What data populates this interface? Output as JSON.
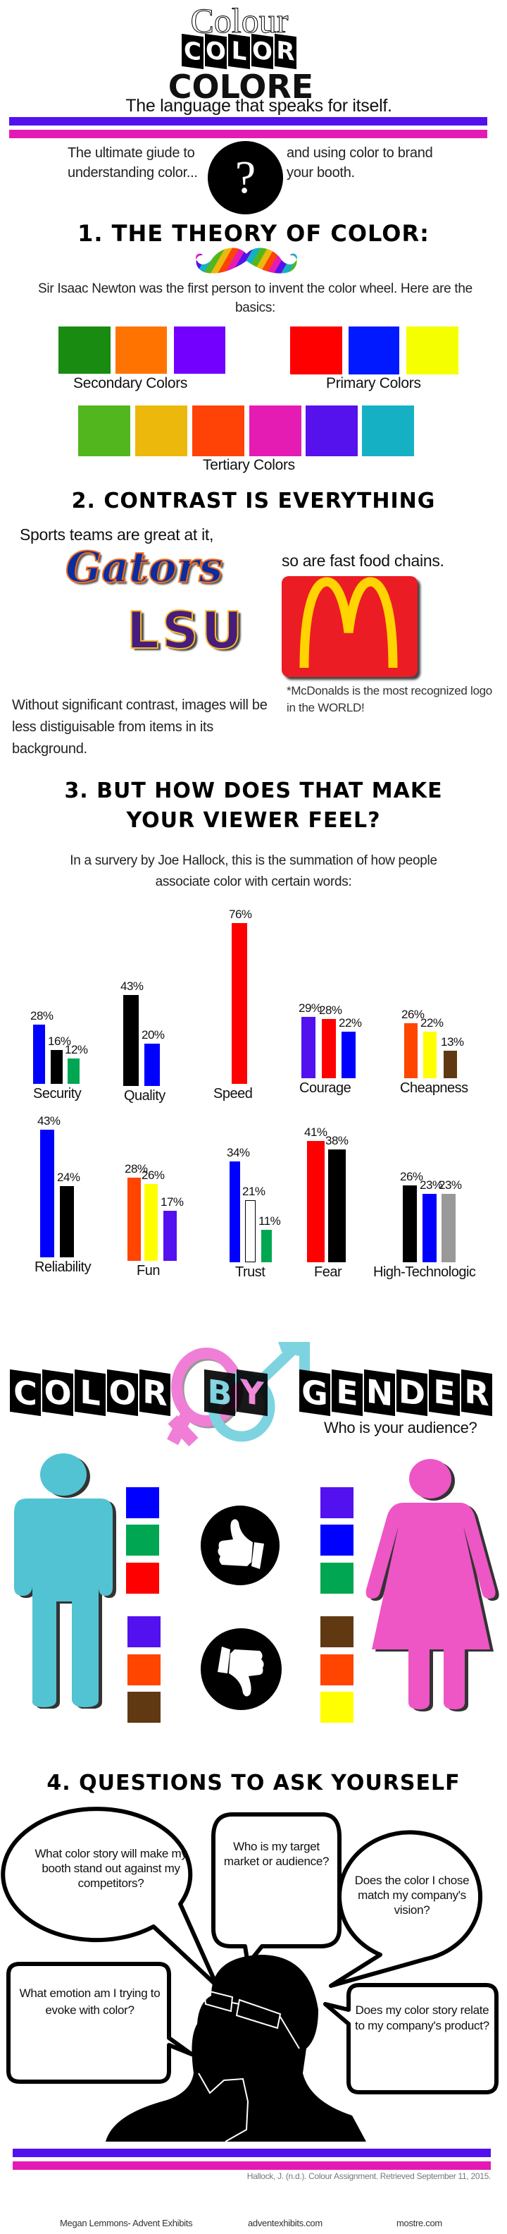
{
  "header": {
    "title_script": "Colour",
    "title_boxed": "COLOR",
    "title_bold": "COLORE",
    "tagline": "The language that speaks for itself.",
    "intro_left": "The ultimate giude to understanding color...",
    "intro_right": "and using color to brand your booth.",
    "question_mark": "?"
  },
  "colors": {
    "purple": "#5211ee",
    "pink": "#e31bb4",
    "male": "#52c3d2",
    "female": "#ee55c5"
  },
  "section1": {
    "heading": "1. THE THEORY OF COLOR:",
    "text": "Sir Isaac Newton was the first person to invent the color wheel. Here are the basics:",
    "secondary": {
      "label": "Secondary Colors",
      "swatches": [
        "#188b10",
        "#ff7300",
        "#7300ff"
      ]
    },
    "primary": {
      "label": "Primary Colors",
      "swatches": [
        "#ff0000",
        "#0019ff",
        "#f5ff00"
      ]
    },
    "tertiary": {
      "label": "Tertiary Colors",
      "swatches": [
        "#52b71f",
        "#ecb80b",
        "#ff4205",
        "#e41cb4",
        "#5612ec",
        "#16b0c5"
      ]
    }
  },
  "section2": {
    "heading": "2. CONTRAST IS EVERYTHING",
    "sports_text": "Sports teams are great at it,",
    "food_text": "so are fast food chains.",
    "logos": {
      "gators": "Gators",
      "lsu": "LSU",
      "mcdonalds": "M"
    },
    "mcd_note": "*McDonalds is the most recognized logo in the WORLD!",
    "contrast_text": "Without significant contrast, images will be less distiguisable from items in its background."
  },
  "section3": {
    "heading_line1": "3. BUT HOW DOES THAT MAKE",
    "heading_line2": "YOUR VIEWER FEEL?",
    "text": "In a survery by Joe Hallock, this is the summation of how people associate color with certain words:"
  },
  "chart_data": {
    "type": "bar",
    "unit": "%",
    "groups": [
      {
        "category": "Security",
        "bars": [
          {
            "value": 28,
            "color": "#0000ff"
          },
          {
            "value": 16,
            "color": "#000000"
          },
          {
            "value": 12,
            "color": "#00a651"
          }
        ]
      },
      {
        "category": "Quality",
        "bars": [
          {
            "value": 43,
            "color": "#000000"
          },
          {
            "value": 20,
            "color": "#0000ff"
          }
        ]
      },
      {
        "category": "Speed",
        "bars": [
          {
            "value": 76,
            "color": "#ff0000"
          }
        ]
      },
      {
        "category": "Courage",
        "bars": [
          {
            "value": 29,
            "color": "#5211ee"
          },
          {
            "value": 28,
            "color": "#ff0000"
          },
          {
            "value": 22,
            "color": "#0000ff"
          }
        ]
      },
      {
        "category": "Cheapness",
        "bars": [
          {
            "value": 26,
            "color": "#ff4500"
          },
          {
            "value": 22,
            "color": "#ffff00"
          },
          {
            "value": 13,
            "color": "#603913"
          }
        ]
      },
      {
        "category": "Reliability",
        "bars": [
          {
            "value": 43,
            "color": "#0000ff"
          },
          {
            "value": 24,
            "color": "#000000"
          }
        ]
      },
      {
        "category": "Fun",
        "bars": [
          {
            "value": 28,
            "color": "#ff4500"
          },
          {
            "value": 26,
            "color": "#ffff00"
          },
          {
            "value": 17,
            "color": "#5211ee"
          }
        ]
      },
      {
        "category": "Trust",
        "bars": [
          {
            "value": 34,
            "color": "#0000ff"
          },
          {
            "value": 21,
            "color": "#ffffff"
          },
          {
            "value": 11,
            "color": "#00a651"
          }
        ]
      },
      {
        "category": "Fear",
        "bars": [
          {
            "value": 41,
            "color": "#ff0000"
          },
          {
            "value": 38,
            "color": "#000000"
          }
        ]
      },
      {
        "category": "High-Technologic",
        "bars": [
          {
            "value": 26,
            "color": "#000000"
          },
          {
            "value": 23,
            "color": "#0000ff"
          },
          {
            "value": 23,
            "color": "#999999"
          }
        ]
      }
    ]
  },
  "gender": {
    "title_words": [
      "COLOR",
      "BY",
      "GENDER"
    ],
    "subtitle": "Who is your audience?",
    "male_likes": [
      "#0000ff",
      "#00a651",
      "#ff0000"
    ],
    "male_dislikes": [
      "#5211ee",
      "#ff4500",
      "#603913"
    ],
    "female_likes": [
      "#5211ee",
      "#0000ff",
      "#00a651"
    ],
    "female_dislikes": [
      "#603913",
      "#ff4500",
      "#ffff00"
    ]
  },
  "section4": {
    "heading": "4. QUESTIONS TO ASK YOURSELF",
    "questions": [
      "What color story will make my booth stand out against my competitors?",
      "Who is my target market or audience?",
      "Does the color I chose match my company's vision?",
      "What emotion am I trying to evoke with color?",
      "Does my color story relate to my company's product?"
    ]
  },
  "footer": {
    "citation": "Hallock, J. (n.d.). Colour Assignment. Retrieved September 11, 2015.",
    "author": "Megan Lemmons- Advent Exhibits",
    "site1": "adventexhibits.com",
    "site2": "mostre.com"
  }
}
